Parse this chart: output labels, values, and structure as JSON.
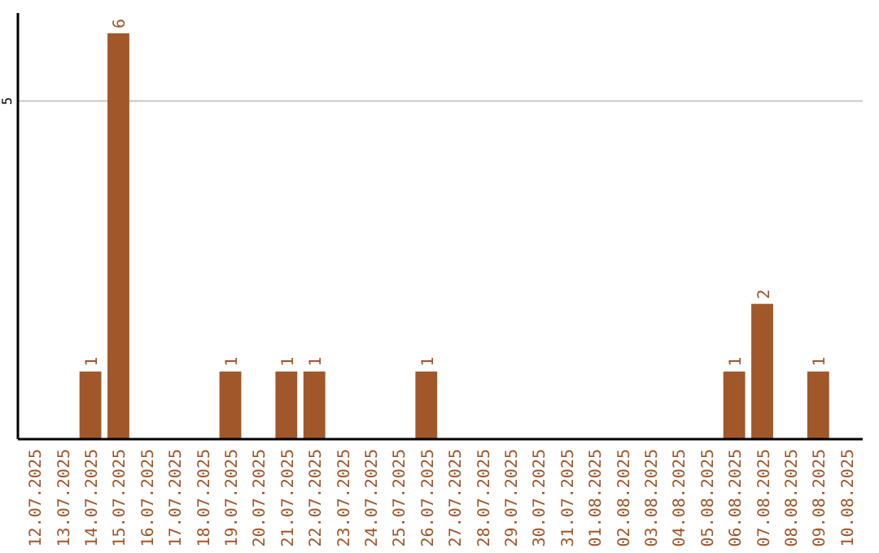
{
  "chart_data": {
    "type": "bar",
    "categories": [
      "12.07.2025",
      "13.07.2025",
      "14.07.2025",
      "15.07.2025",
      "16.07.2025",
      "17.07.2025",
      "18.07.2025",
      "19.07.2025",
      "20.07.2025",
      "21.07.2025",
      "22.07.2025",
      "23.07.2025",
      "24.07.2025",
      "25.07.2025",
      "26.07.2025",
      "27.07.2025",
      "28.07.2025",
      "29.07.2025",
      "30.07.2025",
      "31.07.2025",
      "01.08.2025",
      "02.08.2025",
      "03.08.2025",
      "04.08.2025",
      "05.08.2025",
      "06.08.2025",
      "07.08.2025",
      "08.08.2025",
      "09.08.2025",
      "10.08.2025"
    ],
    "values": [
      0,
      0,
      1,
      6,
      0,
      0,
      0,
      1,
      0,
      1,
      1,
      0,
      0,
      0,
      1,
      0,
      0,
      0,
      0,
      0,
      0,
      0,
      0,
      0,
      0,
      1,
      2,
      0,
      1,
      0
    ],
    "value_labels": [
      null,
      null,
      "1",
      "6",
      null,
      null,
      null,
      "1",
      null,
      "1",
      "1",
      null,
      null,
      null,
      "1",
      null,
      null,
      null,
      null,
      null,
      null,
      null,
      null,
      null,
      null,
      "1",
      "2",
      null,
      "1",
      null
    ],
    "color": "#a0572a",
    "ylim": [
      0,
      6.3
    ],
    "yticks": [
      5
    ],
    "grid": "y"
  }
}
